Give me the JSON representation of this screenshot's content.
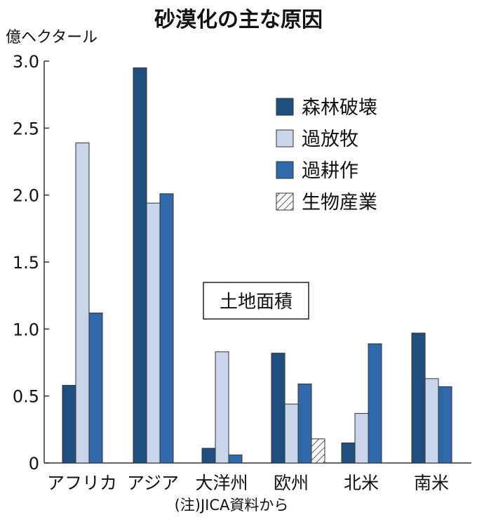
{
  "chart_data": {
    "type": "bar",
    "title": "砂漠化の主な原因",
    "ylabel": "億ヘクタール",
    "xlabel": "",
    "ylim": [
      0,
      3.0
    ],
    "yticks": [
      "0",
      "0.5",
      "1.0",
      "1.5",
      "2.0",
      "2.5",
      "3.0"
    ],
    "ytick_values": [
      0,
      0.5,
      1.0,
      1.5,
      2.0,
      2.5,
      3.0
    ],
    "categories": [
      "アフリカ",
      "アジア",
      "大洋州",
      "欧州",
      "北米",
      "南米"
    ],
    "series": [
      {
        "name": "森林破壊",
        "color": "#1f4f7e",
        "values": [
          0.58,
          2.95,
          0.11,
          0.82,
          0.15,
          0.97
        ]
      },
      {
        "name": "過放牧",
        "color": "#c9d5e8",
        "values": [
          2.39,
          1.94,
          0.83,
          0.44,
          0.37,
          0.63
        ]
      },
      {
        "name": "過耕作",
        "color": "#2f69aa",
        "values": [
          1.12,
          2.01,
          0.06,
          0.59,
          0.89,
          0.57
        ]
      },
      {
        "name": "生物産業",
        "color": "hatch",
        "values": [
          0,
          0,
          0,
          0.18,
          0,
          0
        ]
      }
    ],
    "legend_position": "top-right",
    "annotation": "土地面積",
    "note": "(注)JICA資料から"
  }
}
